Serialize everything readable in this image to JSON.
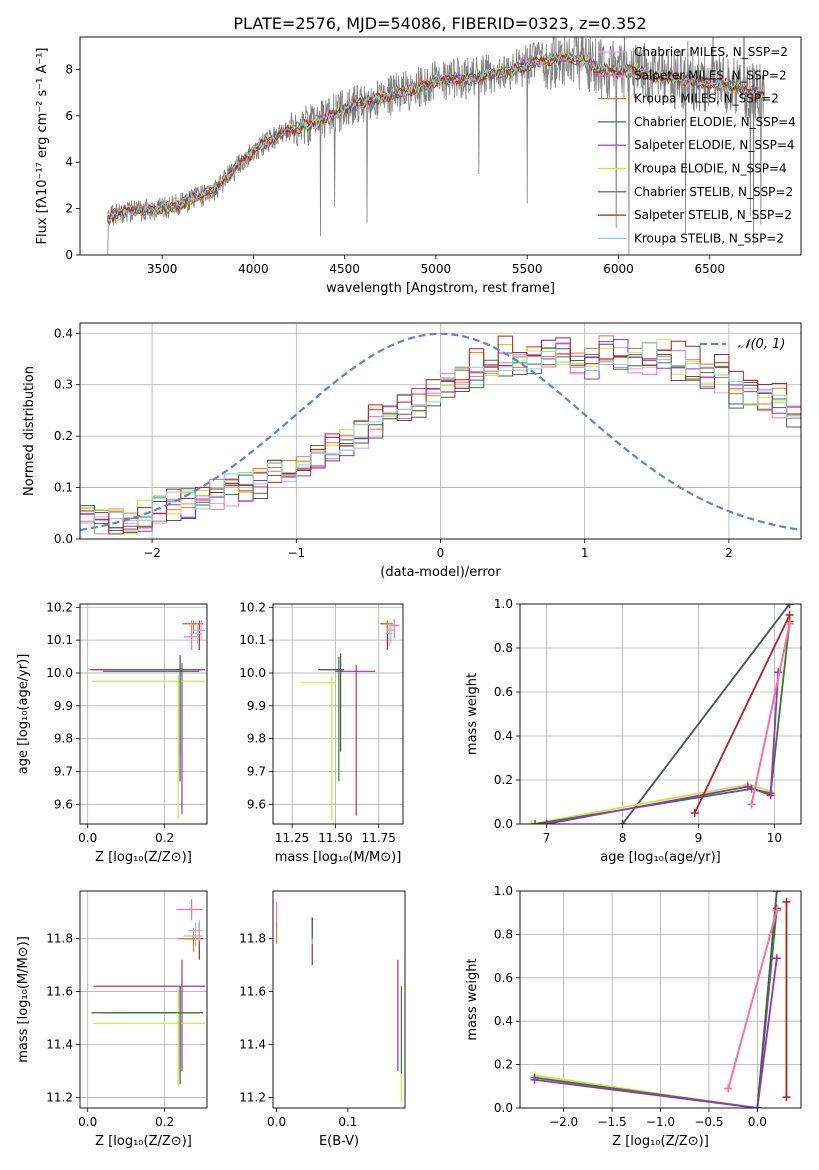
{
  "figure": {
    "title": "PLATE=2576, MJD=54086, FIBERID=0323, z=0.352"
  },
  "colors": {
    "chabrier_miles": "#dda0dd",
    "salpeter_miles": "#ff6fa8",
    "kroupa_miles": "#e8772a",
    "chabrier_elodie": "#3a7a3a",
    "salpeter_elodie": "#9b30c8",
    "kroupa_elodie": "#c8e840",
    "chabrier_stelib": "#555555",
    "salpeter_stelib": "#b22222",
    "kroupa_stelib": "#7fd4d8",
    "normal": "#5b86d6",
    "data": "#808080"
  },
  "chart_data": [
    {
      "id": "spectrum",
      "type": "line",
      "xlabel": "wavelength [Angstrom, rest frame]",
      "ylabel": "Flux [fλ10⁻¹⁷ erg cm⁻² s⁻¹ A⁻¹]",
      "xlim": [
        3050,
        7000
      ],
      "ylim": [
        0,
        9.4
      ],
      "xticks": [
        3500,
        4000,
        4500,
        5000,
        5500,
        6000,
        6500
      ],
      "yticks": [
        0,
        2,
        4,
        6,
        8
      ],
      "grid": false,
      "legend_position": "top-right",
      "legend": [
        {
          "label": "Chabrier MILES, N_SSP=2",
          "color_key": "chabrier_miles"
        },
        {
          "label": "Salpeter MILES, N_SSP=2",
          "color_key": "salpeter_miles"
        },
        {
          "label": "Kroupa MILES, N_SSP=2",
          "color_key": "kroupa_miles"
        },
        {
          "label": "Chabrier ELODIE, N_SSP=4",
          "color_key": "chabrier_elodie"
        },
        {
          "label": "Salpeter ELODIE, N_SSP=4",
          "color_key": "salpeter_elodie"
        },
        {
          "label": "Kroupa ELODIE, N_SSP=4",
          "color_key": "kroupa_elodie"
        },
        {
          "label": "Chabrier STELIB, N_SSP=2",
          "color_key": "chabrier_stelib"
        },
        {
          "label": "Salpeter STELIB, N_SSP=2",
          "color_key": "salpeter_stelib"
        },
        {
          "label": "Kroupa STELIB, N_SSP=2",
          "color_key": "kroupa_stelib"
        }
      ],
      "continuum": {
        "x": [
          3200,
          3300,
          3400,
          3500,
          3600,
          3700,
          3800,
          3900,
          4000,
          4100,
          4200,
          4300,
          4400,
          4500,
          4600,
          4700,
          4800,
          4900,
          5000,
          5100,
          5200,
          5300,
          5400,
          5500,
          5600,
          5700,
          5800,
          5900,
          6000,
          6100,
          6200,
          6300,
          6400,
          6500,
          6600,
          6700,
          6800
        ],
        "y": [
          1.6,
          1.9,
          1.95,
          2.0,
          2.2,
          2.5,
          2.9,
          3.7,
          4.5,
          5.0,
          5.4,
          5.6,
          5.9,
          6.3,
          6.6,
          6.8,
          7.0,
          7.2,
          7.5,
          7.6,
          7.6,
          7.8,
          7.9,
          8.2,
          8.4,
          8.5,
          8.4,
          8.0,
          7.9,
          8.0,
          7.7,
          7.6,
          7.5,
          7.4,
          7.3,
          7.1,
          7.0
        ]
      }
    },
    {
      "id": "residuals",
      "type": "line",
      "xlabel": "(data-model)/error",
      "ylabel": "Normed distribution",
      "xlim": [
        -2.5,
        2.5
      ],
      "ylim": [
        0,
        0.42
      ],
      "xticks": [
        -2,
        -1,
        0,
        1,
        2
      ],
      "yticks": [
        0.0,
        0.1,
        0.2,
        0.3,
        0.4
      ],
      "grid": true,
      "legend_position": "top-right",
      "legend": [
        {
          "label": "𝒩(0, 1)",
          "color_key": "normal"
        }
      ],
      "bin_width": 0.1,
      "bin_start": -2.5,
      "base_hist": [
        0.04,
        0.035,
        0.03,
        0.035,
        0.045,
        0.06,
        0.065,
        0.07,
        0.08,
        0.085,
        0.095,
        0.1,
        0.11,
        0.13,
        0.135,
        0.15,
        0.16,
        0.17,
        0.19,
        0.21,
        0.23,
        0.24,
        0.26,
        0.27,
        0.28,
        0.3,
        0.32,
        0.33,
        0.34,
        0.35,
        0.345,
        0.35,
        0.355,
        0.36,
        0.35,
        0.34,
        0.36,
        0.36,
        0.35,
        0.35,
        0.36,
        0.34,
        0.33,
        0.31,
        0.32,
        0.29,
        0.28,
        0.27,
        0.26,
        0.25,
        0.24,
        0.23,
        0.2,
        0.2,
        0.19,
        0.17,
        0.16,
        0.15,
        0.14,
        0.13,
        0.13,
        0.12,
        0.11,
        0.1,
        0.1,
        0.09,
        0.08,
        0.08,
        0.075,
        0.07,
        0.065,
        0.06
      ]
    },
    {
      "id": "age_vs_Z",
      "type": "scatter",
      "xlabel": "Z [log₁₀(Z/Z⊙)]",
      "ylabel": "age  [log₁₀(age/yr)]",
      "xlim": [
        -0.02,
        0.31
      ],
      "ylim": [
        9.54,
        10.21
      ],
      "xticks": [
        0.0,
        0.2
      ],
      "yticks": [
        9.6,
        9.7,
        9.8,
        9.9,
        10.0,
        10.1,
        10.2
      ],
      "grid": true,
      "points": [
        {
          "color_key": "chabrier_stelib",
          "x": 0.24,
          "xerr": [
            0.23,
            0.06
          ],
          "y": 10.01,
          "yerr": [
            0.34,
            0.04
          ]
        },
        {
          "color_key": "salpeter_elodie",
          "x": 0.245,
          "xerr": [
            0.24,
            0.06
          ],
          "y": 10.01,
          "yerr": [
            0.44,
            0.02
          ]
        },
        {
          "color_key": "kroupa_elodie",
          "x": 0.235,
          "xerr": [
            0.225,
            0.07
          ],
          "y": 9.975,
          "yerr": [
            0.42,
            0.02
          ]
        },
        {
          "color_key": "chabrier_elodie",
          "x": 0.24,
          "xerr": [
            0.2,
            0.05
          ],
          "y": 10.005,
          "yerr": [
            0.25,
            0.05
          ]
        },
        {
          "color_key": "salpeter_stelib",
          "x": 0.29,
          "xerr": [
            0.04,
            0.01
          ],
          "y": 10.15,
          "yerr": [
            0.08,
            0.01
          ]
        },
        {
          "color_key": "kroupa_miles",
          "x": 0.275,
          "xerr": [
            0.03,
            0.02
          ],
          "y": 10.15,
          "yerr": [
            0.03,
            0.01
          ]
        },
        {
          "color_key": "salpeter_miles",
          "x": 0.27,
          "xerr": [
            0.02,
            0.02
          ],
          "y": 10.11,
          "yerr": [
            0.04,
            0.05
          ]
        },
        {
          "color_key": "kroupa_stelib",
          "x": 0.285,
          "xerr": [
            0.02,
            0.01
          ],
          "y": 10.12,
          "yerr": [
            0.03,
            0.03
          ]
        },
        {
          "color_key": "chabrier_miles",
          "x": 0.295,
          "xerr": [
            0.02,
            0.01
          ],
          "y": 10.13,
          "yerr": [
            0.03,
            0.03
          ]
        }
      ]
    },
    {
      "id": "age_vs_mass",
      "type": "scatter",
      "xlabel": "mass [log₁₀(M/M⊙)]",
      "ylabel": "",
      "xlim": [
        11.14,
        11.89
      ],
      "ylim": [
        9.54,
        10.21
      ],
      "xticks": [
        11.25,
        11.5,
        11.75
      ],
      "yticks": [
        9.6,
        9.7,
        9.8,
        9.9,
        10.0,
        10.1,
        10.2
      ],
      "grid": true,
      "points": [
        {
          "color_key": "chabrier_elodie",
          "x": 11.52,
          "xerr": [
            0.12,
            0.03
          ],
          "y": 10.01,
          "yerr": [
            0.34,
            0.04
          ]
        },
        {
          "color_key": "salpeter_elodie",
          "x": 11.62,
          "xerr": [
            0.12,
            0.11
          ],
          "y": 10.005,
          "yerr": [
            0.44,
            0.02
          ]
        },
        {
          "color_key": "kroupa_elodie",
          "x": 11.48,
          "xerr": [
            0.18,
            0.02
          ],
          "y": 9.97,
          "yerr": [
            0.42,
            0.02
          ]
        },
        {
          "color_key": "chabrier_stelib",
          "x": 11.53,
          "xerr": [
            0.12,
            0.02
          ],
          "y": 10.01,
          "yerr": [
            0.25,
            0.05
          ]
        },
        {
          "color_key": "salpeter_stelib",
          "x": 11.8,
          "xerr": [
            0.04,
            0.03
          ],
          "y": 10.15,
          "yerr": [
            0.08,
            0.01
          ]
        },
        {
          "color_key": "kroupa_miles",
          "x": 11.8,
          "xerr": [
            0.03,
            0.03
          ],
          "y": 10.15,
          "yerr": [
            0.03,
            0.01
          ]
        },
        {
          "color_key": "salpeter_miles",
          "x": 11.84,
          "xerr": [
            0.03,
            0.03
          ],
          "y": 10.145,
          "yerr": [
            0.04,
            0.02
          ]
        },
        {
          "color_key": "kroupa_stelib",
          "x": 11.81,
          "xerr": [
            0.02,
            0.02
          ],
          "y": 10.12,
          "yerr": [
            0.04,
            0.03
          ]
        },
        {
          "color_key": "chabrier_miles",
          "x": 11.82,
          "xerr": [
            0.02,
            0.02
          ],
          "y": 10.13,
          "yerr": [
            0.04,
            0.02
          ]
        }
      ]
    },
    {
      "id": "massweight_vs_age",
      "type": "line",
      "xlabel": "age  [log₁₀(age/yr)]",
      "ylabel": "mass weight",
      "xlim": [
        6.65,
        10.35
      ],
      "ylim": [
        0,
        1
      ],
      "xticks": [
        7,
        8,
        9,
        10
      ],
      "yticks": [
        0.0,
        0.2,
        0.4,
        0.6,
        0.8,
        1.0
      ],
      "grid": true,
      "series": [
        {
          "color_key": "kroupa_stelib",
          "x": [
            8.0,
            10.2
          ],
          "y": [
            0.0,
            1.0
          ]
        },
        {
          "color_key": "chabrier_stelib",
          "x": [
            8.0,
            10.2
          ],
          "y": [
            0.0,
            1.0
          ]
        },
        {
          "color_key": "kroupa_elodie",
          "x": [
            6.8,
            9.65,
            9.95,
            10.2
          ],
          "y": [
            0.0,
            0.18,
            0.15,
            0.92
          ]
        },
        {
          "color_key": "chabrier_elodie",
          "x": [
            6.85,
            9.7,
            9.95,
            10.2
          ],
          "y": [
            0.0,
            0.16,
            0.14,
            0.92
          ]
        },
        {
          "color_key": "salpeter_elodie",
          "x": [
            7.0,
            9.65,
            9.95,
            10.05
          ],
          "y": [
            0.0,
            0.17,
            0.13,
            0.69
          ]
        },
        {
          "color_key": "salpeter_stelib",
          "x": [
            8.95,
            10.2
          ],
          "y": [
            0.05,
            0.95
          ]
        },
        {
          "color_key": "kroupa_miles",
          "x": [
            9.7,
            10.2
          ],
          "y": [
            0.09,
            0.91
          ]
        },
        {
          "color_key": "salpeter_miles",
          "x": [
            9.7,
            10.2
          ],
          "y": [
            0.09,
            0.91
          ]
        }
      ]
    },
    {
      "id": "mass_vs_Z",
      "type": "scatter",
      "xlabel": "Z [log₁₀(Z/Z⊙)]",
      "ylabel": "mass [log₁₀(M/M⊙)]",
      "xlim": [
        -0.02,
        0.31
      ],
      "ylim": [
        11.16,
        11.98
      ],
      "xticks": [
        0.0,
        0.2
      ],
      "yticks": [
        11.2,
        11.4,
        11.6,
        11.8
      ],
      "grid": true,
      "points": [
        {
          "color_key": "salpeter_elodie",
          "x": 0.245,
          "xerr": [
            0.23,
            0.06
          ],
          "y": 11.62,
          "yerr": [
            0.32,
            0.1
          ]
        },
        {
          "color_key": "chabrier_stelib",
          "x": 0.24,
          "xerr": [
            0.23,
            0.06
          ],
          "y": 11.52,
          "yerr": [
            0.27,
            0.1
          ]
        },
        {
          "color_key": "kroupa_elodie",
          "x": 0.235,
          "xerr": [
            0.22,
            0.07
          ],
          "y": 11.48,
          "yerr": [
            0.24,
            0.14
          ]
        },
        {
          "color_key": "chabrier_elodie",
          "x": 0.24,
          "xerr": [
            0.2,
            0.05
          ],
          "y": 11.52,
          "yerr": [
            0.23,
            0.1
          ]
        },
        {
          "color_key": "salpeter_miles",
          "x": 0.27,
          "xerr": [
            0.04,
            0.03
          ],
          "y": 11.91,
          "yerr": [
            0.04,
            0.04
          ]
        },
        {
          "color_key": "salpeter_stelib",
          "x": 0.29,
          "xerr": [
            0.04,
            0.01
          ],
          "y": 11.8,
          "yerr": [
            0.08,
            0.06
          ]
        },
        {
          "color_key": "kroupa_miles",
          "x": 0.275,
          "xerr": [
            0.04,
            0.02
          ],
          "y": 11.8,
          "yerr": [
            0.05,
            0.04
          ]
        },
        {
          "color_key": "kroupa_stelib",
          "x": 0.28,
          "xerr": [
            0.03,
            0.02
          ],
          "y": 11.81,
          "yerr": [
            0.04,
            0.05
          ]
        },
        {
          "color_key": "chabrier_miles",
          "x": 0.29,
          "xerr": [
            0.03,
            0.01
          ],
          "y": 11.83,
          "yerr": [
            0.04,
            0.04
          ]
        }
      ]
    },
    {
      "id": "mass_vs_ebv",
      "type": "scatter",
      "xlabel": "E(B-V)",
      "ylabel": "",
      "xlim": [
        -0.005,
        0.18
      ],
      "ylim": [
        11.16,
        11.98
      ],
      "xticks": [
        0.0,
        0.1
      ],
      "yticks": [
        11.2,
        11.4,
        11.6,
        11.8
      ],
      "grid": false,
      "points": [
        {
          "color_key": "salpeter_miles",
          "x": 0.0,
          "y": 11.88,
          "yerr": [
            0.04,
            0.06
          ]
        },
        {
          "color_key": "kroupa_miles",
          "x": 0.0,
          "y": 11.82,
          "yerr": [
            0.04,
            0.04
          ]
        },
        {
          "color_key": "salpeter_stelib",
          "x": 0.05,
          "y": 11.78,
          "yerr": [
            0.08,
            0.1
          ]
        },
        {
          "color_key": "kroupa_stelib",
          "x": 0.05,
          "y": 11.82,
          "yerr": [
            0.04,
            0.05
          ]
        },
        {
          "color_key": "chabrier_stelib",
          "x": 0.05,
          "y": 11.84,
          "yerr": [
            0.04,
            0.04
          ]
        },
        {
          "color_key": "salpeter_elodie",
          "x": 0.17,
          "y": 11.62,
          "yerr": [
            0.32,
            0.1
          ]
        },
        {
          "color_key": "kroupa_elodie",
          "x": 0.175,
          "y": 11.48,
          "yerr": [
            0.3,
            0.14
          ]
        },
        {
          "color_key": "chabrier_elodie",
          "x": 0.175,
          "y": 11.52,
          "yerr": [
            0.23,
            0.1
          ]
        }
      ]
    },
    {
      "id": "massweight_vs_Z",
      "type": "line",
      "xlabel": "Z [log₁₀(Z/Z⊙)]",
      "ylabel": "mass weight",
      "xlim": [
        -2.45,
        0.45
      ],
      "ylim": [
        0,
        1
      ],
      "xticks": [
        -2.0,
        -1.5,
        -1.0,
        -0.5,
        0.0
      ],
      "yticks": [
        0.0,
        0.2,
        0.4,
        0.6,
        0.8,
        1.0
      ],
      "grid": true,
      "series": [
        {
          "color_key": "kroupa_elodie",
          "x": [
            -2.3,
            0.0,
            0.2
          ],
          "y": [
            0.15,
            0.0,
            0.92
          ]
        },
        {
          "color_key": "chabrier_elodie",
          "x": [
            -2.3,
            0.0,
            0.2
          ],
          "y": [
            0.14,
            0.0,
            0.92
          ]
        },
        {
          "color_key": "salpeter_elodie",
          "x": [
            -2.3,
            0.0,
            0.2
          ],
          "y": [
            0.13,
            0.0,
            0.69
          ]
        },
        {
          "color_key": "kroupa_stelib",
          "x": [
            0.0,
            0.2
          ],
          "y": [
            0.0,
            1.0
          ]
        },
        {
          "color_key": "chabrier_stelib",
          "x": [
            0.0,
            0.2
          ],
          "y": [
            0.0,
            1.0
          ]
        },
        {
          "color_key": "kroupa_miles",
          "x": [
            -0.3,
            0.2
          ],
          "y": [
            0.09,
            0.91
          ]
        },
        {
          "color_key": "salpeter_miles",
          "x": [
            -0.3,
            0.2
          ],
          "y": [
            0.09,
            0.91
          ]
        },
        {
          "color_key": "salpeter_stelib",
          "x": [
            0.3,
            0.3
          ],
          "y": [
            0.05,
            0.95
          ]
        }
      ]
    }
  ]
}
